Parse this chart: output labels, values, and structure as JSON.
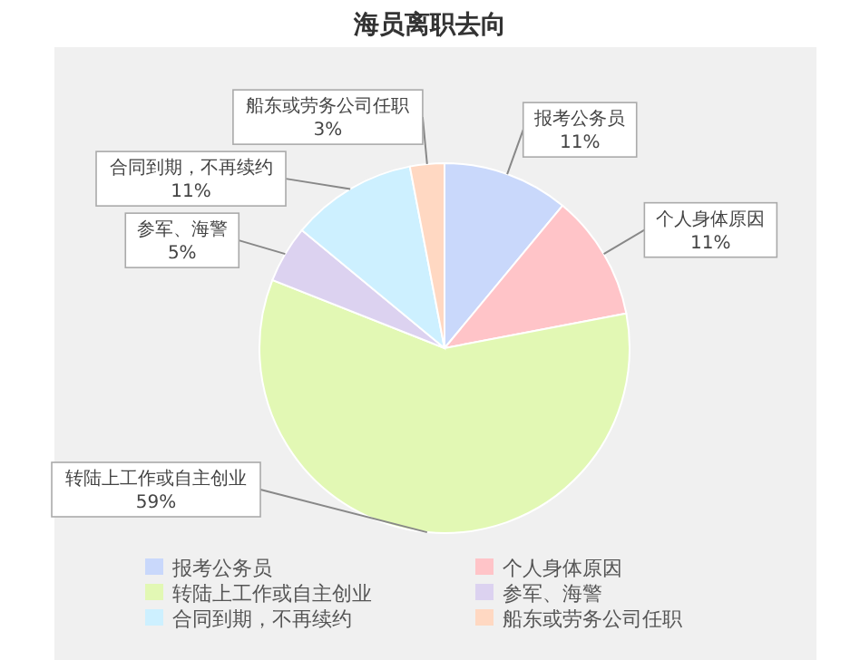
{
  "chart_data": {
    "type": "pie",
    "title": "海员离职去向",
    "categories": [
      "报考公务员",
      "个人身体原因",
      "转陆上工作或自主创业",
      "参军、海警",
      "合同到期，不再续约",
      "船东或劳务公司任职"
    ],
    "values": [
      11,
      11,
      59,
      5,
      11,
      3
    ],
    "colors": [
      "#c9d8fb",
      "#ffc4c8",
      "#e2f8b4",
      "#dcd2f0",
      "#cdf0ff",
      "#ffd8c2"
    ],
    "data_labels": true,
    "value_labels": [
      "11%",
      "11%",
      "59%",
      "5%",
      "11%",
      "3%"
    ],
    "legend": "bottom"
  }
}
